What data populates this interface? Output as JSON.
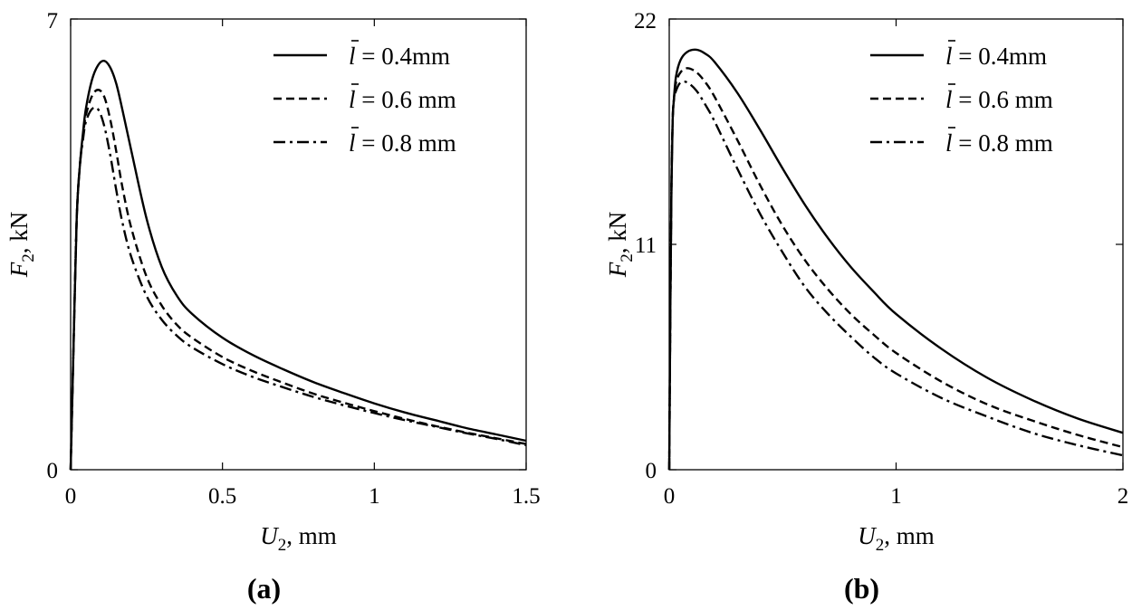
{
  "chart_data": [
    {
      "type": "line",
      "panel_label": "(a)",
      "xlabel": {
        "var": "U",
        "sub": "2",
        "unit": ", mm"
      },
      "ylabel": {
        "var": "F",
        "sub": "2",
        "unit": ", kN"
      },
      "xlim": [
        0,
        1.5
      ],
      "ylim": [
        0,
        7
      ],
      "xticks": [
        "0",
        "0.5",
        "1",
        "1.5"
      ],
      "xtick_values": [
        0,
        0.5,
        1,
        1.5
      ],
      "yticks": [
        "0",
        "7"
      ],
      "ytick_values": [
        0,
        7
      ],
      "legend_position": "top-right",
      "series": [
        {
          "name": "l = 0.4mm",
          "legend_var": "l",
          "legend_rest": " = 0.4mm",
          "style": "solid",
          "x": [
            0,
            0.01,
            0.02,
            0.03,
            0.04,
            0.05,
            0.07,
            0.09,
            0.11,
            0.13,
            0.15,
            0.17,
            0.2,
            0.25,
            0.3,
            0.35,
            0.4,
            0.5,
            0.6,
            0.7,
            0.8,
            0.9,
            1.0,
            1.1,
            1.2,
            1.3,
            1.4,
            1.5
          ],
          "y": [
            0,
            2.0,
            3.9,
            4.7,
            5.2,
            5.6,
            6.05,
            6.28,
            6.35,
            6.25,
            6.0,
            5.6,
            4.95,
            3.9,
            3.15,
            2.7,
            2.42,
            2.05,
            1.78,
            1.56,
            1.36,
            1.19,
            1.03,
            0.89,
            0.77,
            0.65,
            0.55,
            0.45
          ]
        },
        {
          "name": "l = 0.6 mm",
          "legend_var": "l",
          "legend_rest": " = 0.6 mm",
          "style": "dashed",
          "x": [
            0,
            0.01,
            0.02,
            0.03,
            0.04,
            0.05,
            0.07,
            0.09,
            0.11,
            0.13,
            0.15,
            0.17,
            0.2,
            0.25,
            0.3,
            0.35,
            0.4,
            0.5,
            0.6,
            0.7,
            0.8,
            0.9,
            1.0,
            1.1,
            1.2,
            1.3,
            1.4,
            1.5
          ],
          "y": [
            0,
            2.0,
            3.9,
            4.7,
            5.15,
            5.5,
            5.8,
            5.9,
            5.8,
            5.45,
            4.95,
            4.4,
            3.75,
            3.0,
            2.55,
            2.25,
            2.05,
            1.75,
            1.53,
            1.35,
            1.18,
            1.04,
            0.91,
            0.79,
            0.68,
            0.58,
            0.49,
            0.4
          ]
        },
        {
          "name": "l = 0.8 mm",
          "legend_var": "l",
          "legend_rest": " = 0.8 mm",
          "style": "dashdot",
          "x": [
            0,
            0.01,
            0.02,
            0.03,
            0.04,
            0.05,
            0.07,
            0.09,
            0.11,
            0.13,
            0.15,
            0.17,
            0.2,
            0.25,
            0.3,
            0.35,
            0.4,
            0.5,
            0.6,
            0.7,
            0.8,
            0.9,
            1.0,
            1.1,
            1.2,
            1.3,
            1.4,
            1.5
          ],
          "y": [
            0,
            2.0,
            3.9,
            4.7,
            5.1,
            5.4,
            5.6,
            5.6,
            5.35,
            4.9,
            4.35,
            3.85,
            3.3,
            2.7,
            2.33,
            2.08,
            1.9,
            1.64,
            1.44,
            1.28,
            1.13,
            1.0,
            0.88,
            0.77,
            0.67,
            0.57,
            0.48,
            0.38
          ]
        }
      ]
    },
    {
      "type": "line",
      "panel_label": "(b)",
      "xlabel": {
        "var": "U",
        "sub": "2",
        "unit": ", mm"
      },
      "ylabel": {
        "var": "F",
        "sub": "2",
        "unit": ", kN"
      },
      "xlim": [
        0,
        2
      ],
      "ylim": [
        0,
        22
      ],
      "xticks": [
        "0",
        "1",
        "2"
      ],
      "xtick_values": [
        0,
        1,
        2
      ],
      "yticks": [
        "0",
        "11",
        "22"
      ],
      "ytick_values": [
        0,
        11,
        22
      ],
      "legend_position": "top-right",
      "series": [
        {
          "name": "l = 0.4mm",
          "legend_var": "l",
          "legend_rest": " = 0.4mm",
          "style": "solid",
          "x": [
            0,
            0.005,
            0.01,
            0.015,
            0.02,
            0.03,
            0.05,
            0.08,
            0.12,
            0.16,
            0.2,
            0.3,
            0.4,
            0.5,
            0.6,
            0.7,
            0.8,
            0.9,
            1.0,
            1.2,
            1.4,
            1.6,
            1.8,
            2.0
          ],
          "y": [
            0,
            8.0,
            14.0,
            17.0,
            18.0,
            19.2,
            20.0,
            20.4,
            20.5,
            20.3,
            19.9,
            18.4,
            16.6,
            14.7,
            12.9,
            11.3,
            9.9,
            8.7,
            7.6,
            5.9,
            4.5,
            3.4,
            2.5,
            1.8
          ]
        },
        {
          "name": "l = 0.6 mm",
          "legend_var": "l",
          "legend_rest": " = 0.6 mm",
          "style": "dashed",
          "x": [
            0,
            0.005,
            0.01,
            0.015,
            0.02,
            0.03,
            0.05,
            0.08,
            0.12,
            0.16,
            0.2,
            0.3,
            0.4,
            0.5,
            0.6,
            0.7,
            0.8,
            0.9,
            1.0,
            1.2,
            1.4,
            1.6,
            1.8,
            2.0
          ],
          "y": [
            0,
            8.0,
            14.0,
            17.0,
            18.0,
            18.9,
            19.4,
            19.6,
            19.4,
            18.9,
            18.2,
            16.1,
            13.9,
            11.9,
            10.2,
            8.8,
            7.6,
            6.6,
            5.7,
            4.3,
            3.2,
            2.4,
            1.7,
            1.1
          ]
        },
        {
          "name": "l = 0.8 mm",
          "legend_var": "l",
          "legend_rest": " = 0.8 mm",
          "style": "dashdot",
          "x": [
            0,
            0.005,
            0.01,
            0.015,
            0.02,
            0.03,
            0.05,
            0.08,
            0.12,
            0.16,
            0.2,
            0.3,
            0.4,
            0.5,
            0.6,
            0.7,
            0.8,
            0.9,
            1.0,
            1.2,
            1.4,
            1.6,
            1.8,
            2.0
          ],
          "y": [
            0,
            8.0,
            14.0,
            17.0,
            18.0,
            18.5,
            18.9,
            18.9,
            18.5,
            17.8,
            17.0,
            14.7,
            12.5,
            10.6,
            8.9,
            7.6,
            6.5,
            5.5,
            4.7,
            3.5,
            2.6,
            1.8,
            1.2,
            0.7
          ]
        }
      ]
    }
  ]
}
